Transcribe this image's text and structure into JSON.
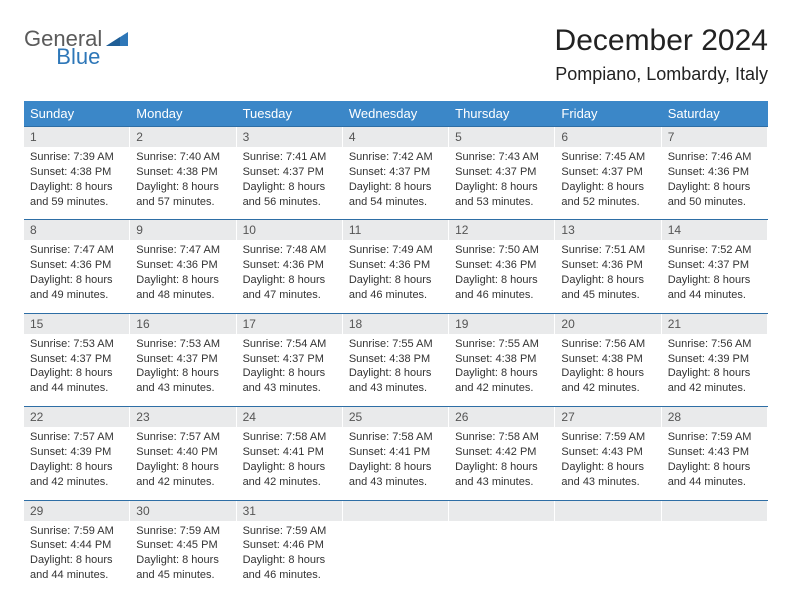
{
  "logo": {
    "part1": "General",
    "part2": "Blue"
  },
  "header": {
    "title": "December 2024",
    "location": "Pompiano, Lombardy, Italy"
  },
  "colors": {
    "header_bg": "#3b87c8",
    "header_fg": "#ffffff",
    "row_border": "#2e6ea5",
    "daynum_bg": "#e9eaeb",
    "brand_blue": "#2e77b8",
    "brand_gray": "#5b5b5b"
  },
  "weekdays": [
    "Sunday",
    "Monday",
    "Tuesday",
    "Wednesday",
    "Thursday",
    "Friday",
    "Saturday"
  ],
  "weeks": [
    [
      {
        "n": "1",
        "sr": "7:39 AM",
        "ss": "4:38 PM",
        "dl": "8 hours and 59 minutes."
      },
      {
        "n": "2",
        "sr": "7:40 AM",
        "ss": "4:38 PM",
        "dl": "8 hours and 57 minutes."
      },
      {
        "n": "3",
        "sr": "7:41 AM",
        "ss": "4:37 PM",
        "dl": "8 hours and 56 minutes."
      },
      {
        "n": "4",
        "sr": "7:42 AM",
        "ss": "4:37 PM",
        "dl": "8 hours and 54 minutes."
      },
      {
        "n": "5",
        "sr": "7:43 AM",
        "ss": "4:37 PM",
        "dl": "8 hours and 53 minutes."
      },
      {
        "n": "6",
        "sr": "7:45 AM",
        "ss": "4:37 PM",
        "dl": "8 hours and 52 minutes."
      },
      {
        "n": "7",
        "sr": "7:46 AM",
        "ss": "4:36 PM",
        "dl": "8 hours and 50 minutes."
      }
    ],
    [
      {
        "n": "8",
        "sr": "7:47 AM",
        "ss": "4:36 PM",
        "dl": "8 hours and 49 minutes."
      },
      {
        "n": "9",
        "sr": "7:47 AM",
        "ss": "4:36 PM",
        "dl": "8 hours and 48 minutes."
      },
      {
        "n": "10",
        "sr": "7:48 AM",
        "ss": "4:36 PM",
        "dl": "8 hours and 47 minutes."
      },
      {
        "n": "11",
        "sr": "7:49 AM",
        "ss": "4:36 PM",
        "dl": "8 hours and 46 minutes."
      },
      {
        "n": "12",
        "sr": "7:50 AM",
        "ss": "4:36 PM",
        "dl": "8 hours and 46 minutes."
      },
      {
        "n": "13",
        "sr": "7:51 AM",
        "ss": "4:36 PM",
        "dl": "8 hours and 45 minutes."
      },
      {
        "n": "14",
        "sr": "7:52 AM",
        "ss": "4:37 PM",
        "dl": "8 hours and 44 minutes."
      }
    ],
    [
      {
        "n": "15",
        "sr": "7:53 AM",
        "ss": "4:37 PM",
        "dl": "8 hours and 44 minutes."
      },
      {
        "n": "16",
        "sr": "7:53 AM",
        "ss": "4:37 PM",
        "dl": "8 hours and 43 minutes."
      },
      {
        "n": "17",
        "sr": "7:54 AM",
        "ss": "4:37 PM",
        "dl": "8 hours and 43 minutes."
      },
      {
        "n": "18",
        "sr": "7:55 AM",
        "ss": "4:38 PM",
        "dl": "8 hours and 43 minutes."
      },
      {
        "n": "19",
        "sr": "7:55 AM",
        "ss": "4:38 PM",
        "dl": "8 hours and 42 minutes."
      },
      {
        "n": "20",
        "sr": "7:56 AM",
        "ss": "4:38 PM",
        "dl": "8 hours and 42 minutes."
      },
      {
        "n": "21",
        "sr": "7:56 AM",
        "ss": "4:39 PM",
        "dl": "8 hours and 42 minutes."
      }
    ],
    [
      {
        "n": "22",
        "sr": "7:57 AM",
        "ss": "4:39 PM",
        "dl": "8 hours and 42 minutes."
      },
      {
        "n": "23",
        "sr": "7:57 AM",
        "ss": "4:40 PM",
        "dl": "8 hours and 42 minutes."
      },
      {
        "n": "24",
        "sr": "7:58 AM",
        "ss": "4:41 PM",
        "dl": "8 hours and 42 minutes."
      },
      {
        "n": "25",
        "sr": "7:58 AM",
        "ss": "4:41 PM",
        "dl": "8 hours and 43 minutes."
      },
      {
        "n": "26",
        "sr": "7:58 AM",
        "ss": "4:42 PM",
        "dl": "8 hours and 43 minutes."
      },
      {
        "n": "27",
        "sr": "7:59 AM",
        "ss": "4:43 PM",
        "dl": "8 hours and 43 minutes."
      },
      {
        "n": "28",
        "sr": "7:59 AM",
        "ss": "4:43 PM",
        "dl": "8 hours and 44 minutes."
      }
    ],
    [
      {
        "n": "29",
        "sr": "7:59 AM",
        "ss": "4:44 PM",
        "dl": "8 hours and 44 minutes."
      },
      {
        "n": "30",
        "sr": "7:59 AM",
        "ss": "4:45 PM",
        "dl": "8 hours and 45 minutes."
      },
      {
        "n": "31",
        "sr": "7:59 AM",
        "ss": "4:46 PM",
        "dl": "8 hours and 46 minutes."
      },
      {
        "empty": true
      },
      {
        "empty": true
      },
      {
        "empty": true
      },
      {
        "empty": true
      }
    ]
  ],
  "labels": {
    "sunrise": "Sunrise: ",
    "sunset": "Sunset: ",
    "daylight": "Daylight: "
  }
}
